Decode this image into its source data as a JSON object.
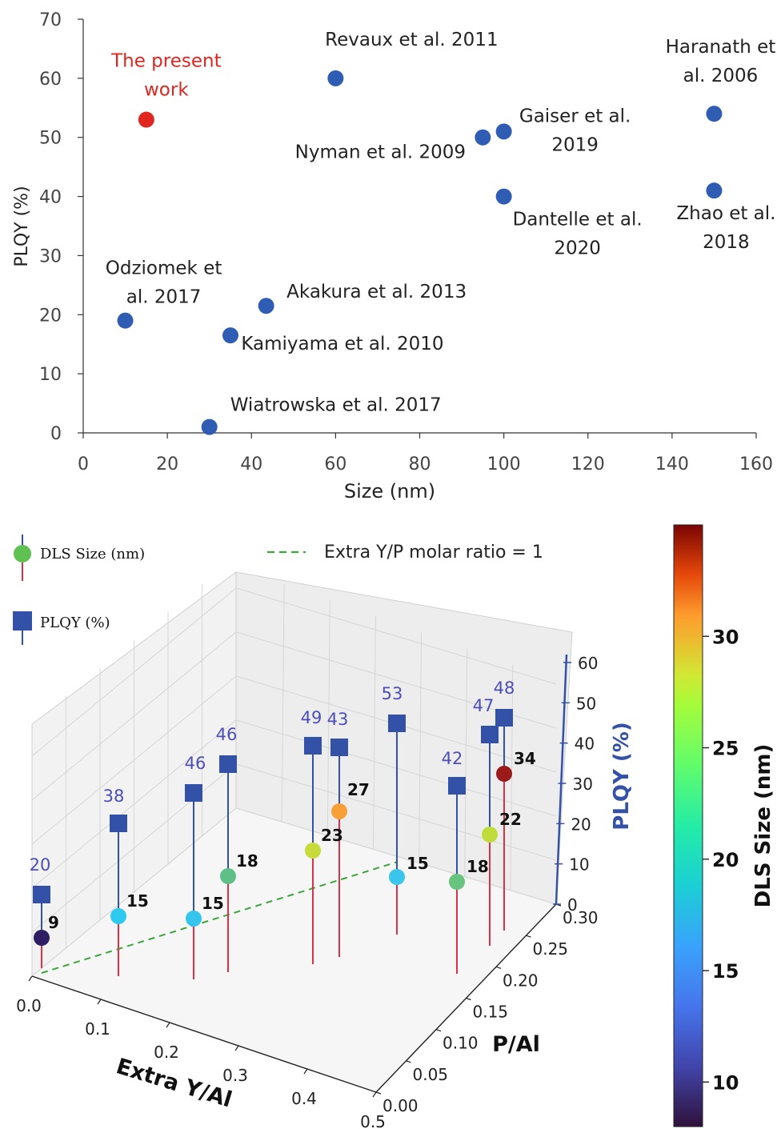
{
  "chart_data": [
    {
      "type": "scatter",
      "xlabel": "Size (nm)",
      "ylabel": "PLQY (%)",
      "xlim": [
        0,
        160
      ],
      "ylim": [
        0,
        70
      ],
      "x_ticks": [
        "0",
        "20",
        "40",
        "60",
        "80",
        "100",
        "120",
        "140",
        "160"
      ],
      "y_ticks": [
        "0",
        "10",
        "20",
        "30",
        "40",
        "50",
        "60",
        "70"
      ],
      "colors": {
        "literature": "#2f5db4",
        "present": "#e0261f",
        "axis": "#333333",
        "text": "#222222",
        "highlight_text": "#e0261f"
      },
      "points": [
        {
          "x": 15,
          "y": 53,
          "label_lines": [
            "The present",
            "work"
          ],
          "highlight": true
        },
        {
          "x": 60,
          "y": 60,
          "label_lines": [
            "Revaux et al. 2011"
          ],
          "highlight": false
        },
        {
          "x": 95,
          "y": 50,
          "label_lines": [
            "Nyman et al. 2009"
          ],
          "highlight": false
        },
        {
          "x": 100,
          "y": 51,
          "label_lines": [
            "Gaiser et al.",
            "2019"
          ],
          "highlight": false
        },
        {
          "x": 100,
          "y": 40,
          "label_lines": [
            "Dantelle et al.",
            "2020"
          ],
          "highlight": false
        },
        {
          "x": 150,
          "y": 54,
          "label_lines": [
            "Haranath et",
            "al. 2006"
          ],
          "highlight": false
        },
        {
          "x": 150,
          "y": 41,
          "label_lines": [
            "Zhao et al.",
            "2018"
          ],
          "highlight": false
        },
        {
          "x": 10,
          "y": 19,
          "label_lines": [
            "Odziomek et",
            "al. 2017"
          ],
          "highlight": false
        },
        {
          "x": 43.5,
          "y": 21.5,
          "label_lines": [
            "Akakura et al. 2013"
          ],
          "highlight": false
        },
        {
          "x": 35,
          "y": 16.5,
          "label_lines": [
            "Kamiyama et al. 2010"
          ],
          "highlight": false
        },
        {
          "x": 30,
          "y": 1,
          "label_lines": [
            "Wiatrowska et al. 2017"
          ],
          "highlight": false
        }
      ]
    },
    {
      "type": "scatter",
      "projection": "3d",
      "xlabel": "Extra Y/Al",
      "ylabel": "P/Al",
      "zlabel": "PLQY (%)",
      "colorbar_label": "DLS Size (nm)",
      "xlim": [
        0,
        0.5
      ],
      "ylim": [
        0,
        0.3
      ],
      "zlim": [
        0,
        60
      ],
      "x_ticks": [
        "0.0",
        "0.1",
        "0.2",
        "0.3",
        "0.4",
        "0.5"
      ],
      "y_ticks": [
        "0.00",
        "0.05",
        "0.10",
        "0.15",
        "0.20",
        "0.25",
        "0.30"
      ],
      "z_ticks": [
        "0",
        "10",
        "20",
        "30",
        "40",
        "50",
        "60"
      ],
      "colorbar_ticks": [
        "10",
        "15",
        "20",
        "25",
        "30"
      ],
      "colorbar_range": [
        8,
        35
      ],
      "legend": {
        "dls": "DLS Size (nm)",
        "plqy": "PLQY (%)",
        "line": "Extra Y/P molar ratio = 1"
      },
      "colors": {
        "plqy_marker": "#3451a8",
        "plqy_label": "#4d4dbb",
        "stem_red": "#d8324a",
        "dashed_line": "#3aa63a",
        "z_axis": "#3451a8",
        "legend_green": "#5ec151"
      },
      "series": [
        {
          "name": "DLS Size (nm)",
          "values": [
            9,
            15,
            15,
            18,
            23,
            27,
            15,
            18,
            22,
            34
          ]
        },
        {
          "name": "PLQY (%)",
          "values": [
            20,
            38,
            46,
            46,
            49,
            43,
            53,
            42,
            47,
            48
          ]
        }
      ],
      "dls_colors": [
        "#2f1d63",
        "#2ec9ee",
        "#34c4ec",
        "#5ebf87",
        "#c7dc3a",
        "#f7a037",
        "#39c6ea",
        "#66c47e",
        "#bfdc3a",
        "#9b1a1a"
      ],
      "dls_labels": [
        "9",
        "15",
        "15",
        "18",
        "23",
        "27",
        "15",
        "18",
        "22",
        "34"
      ],
      "plqy_labels": [
        "20",
        "38",
        "46",
        "46",
        "49",
        "43",
        "53",
        "42",
        "47",
        "48"
      ],
      "fit_line_points": [
        [
          0,
          0
        ],
        [
          0.3,
          0.3
        ]
      ]
    }
  ]
}
